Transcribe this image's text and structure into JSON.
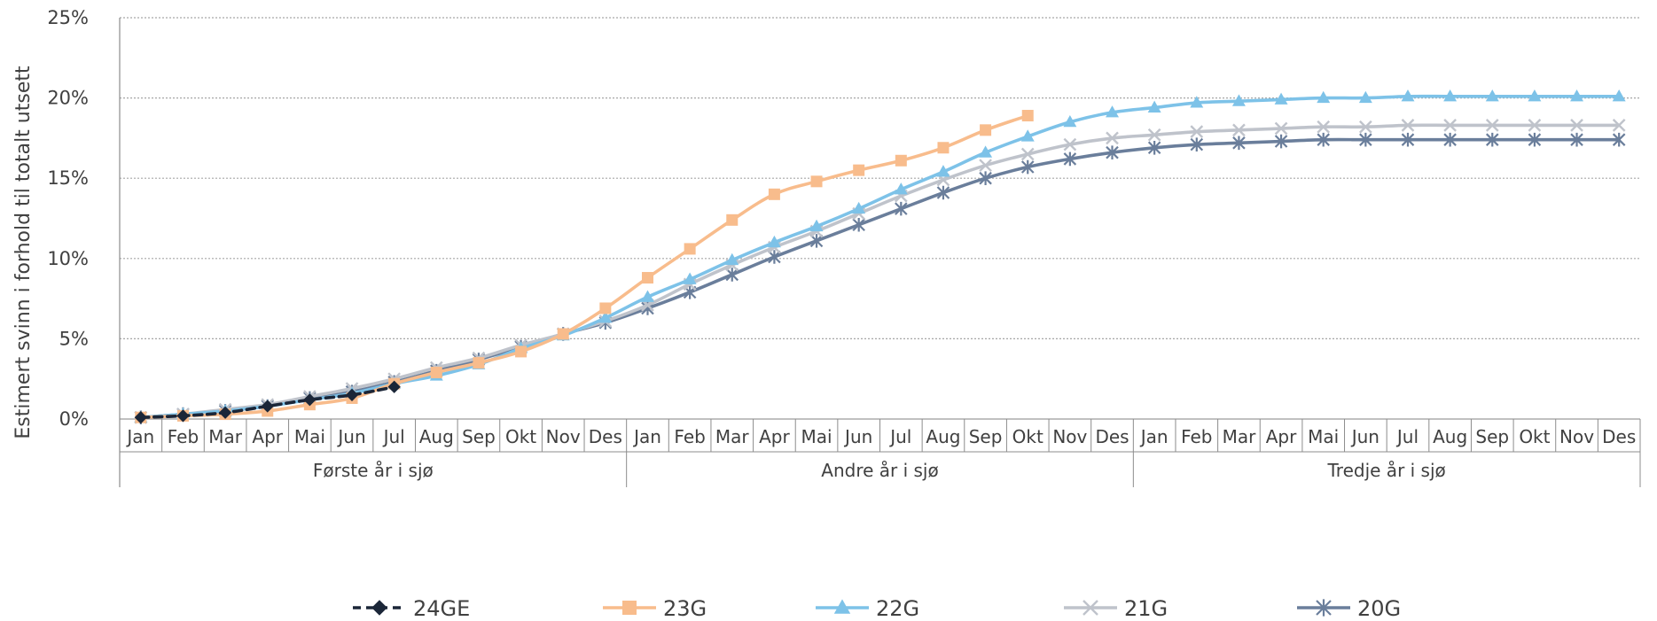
{
  "chart_data": {
    "type": "line",
    "title": "",
    "ylabel": "Estimert svinn i forhold til totalt utsett",
    "xlabel": "",
    "ylim": [
      0,
      25
    ],
    "yticks": [
      "0%",
      "5%",
      "10%",
      "15%",
      "20%",
      "25%"
    ],
    "grid": "horizontal dotted",
    "legend_position": "bottom",
    "categories": [
      "Jan",
      "Feb",
      "Mar",
      "Apr",
      "Mai",
      "Jun",
      "Jul",
      "Aug",
      "Sep",
      "Okt",
      "Nov",
      "Des",
      "Jan",
      "Feb",
      "Mar",
      "Apr",
      "Mai",
      "Jun",
      "Jul",
      "Aug",
      "Sep",
      "Okt",
      "Nov",
      "Des",
      "Jan",
      "Feb",
      "Mar",
      "Apr",
      "Mai",
      "Jun",
      "Jul",
      "Aug",
      "Sep",
      "Okt",
      "Nov",
      "Des"
    ],
    "groups": [
      {
        "label": "Første år i sjø",
        "start": 0,
        "end": 11
      },
      {
        "label": "Andre år i sjø",
        "start": 12,
        "end": 23
      },
      {
        "label": "Tredje år i sjø",
        "start": 24,
        "end": 35
      }
    ],
    "series": [
      {
        "name": "20G",
        "color": "#6a7e9b",
        "marker": "asterisk",
        "values": [
          0.1,
          0.3,
          0.5,
          0.8,
          1.3,
          1.7,
          2.3,
          3.0,
          3.7,
          4.5,
          5.3,
          6.0,
          6.9,
          7.9,
          9.0,
          10.1,
          11.1,
          12.1,
          13.1,
          14.1,
          15.0,
          15.7,
          16.2,
          16.6,
          16.9,
          17.1,
          17.2,
          17.3,
          17.4,
          17.4,
          17.4,
          17.4,
          17.4,
          17.4,
          17.4,
          17.4
        ]
      },
      {
        "name": "21G",
        "color": "#bfc3cb",
        "marker": "x",
        "values": [
          0.1,
          0.3,
          0.6,
          0.9,
          1.4,
          1.9,
          2.5,
          3.2,
          3.8,
          4.6,
          5.3,
          6.1,
          7.1,
          8.4,
          9.6,
          10.7,
          11.7,
          12.8,
          13.9,
          14.9,
          15.8,
          16.5,
          17.1,
          17.5,
          17.7,
          17.9,
          18.0,
          18.1,
          18.2,
          18.2,
          18.3,
          18.3,
          18.3,
          18.3,
          18.3,
          18.3
        ]
      },
      {
        "name": "22G",
        "color": "#7dc2e8",
        "marker": "triangle",
        "values": [
          0.1,
          0.3,
          0.5,
          0.8,
          1.2,
          1.6,
          2.2,
          2.7,
          3.4,
          4.4,
          5.2,
          6.3,
          7.6,
          8.7,
          9.9,
          11.0,
          12.0,
          13.1,
          14.3,
          15.4,
          16.6,
          17.6,
          18.5,
          19.1,
          19.4,
          19.7,
          19.8,
          19.9,
          20.0,
          20.0,
          20.1,
          20.1,
          20.1,
          20.1,
          20.1,
          20.1
        ]
      },
      {
        "name": "23G",
        "color": "#f8bc8c",
        "marker": "square",
        "values": [
          0.1,
          0.2,
          0.3,
          0.5,
          0.9,
          1.3,
          2.2,
          2.9,
          3.5,
          4.2,
          5.3,
          6.9,
          8.8,
          10.6,
          12.4,
          14.0,
          14.8,
          15.5,
          16.1,
          16.9,
          18.0,
          18.9,
          null,
          null,
          null,
          null,
          null,
          null,
          null,
          null,
          null,
          null,
          null,
          null,
          null,
          null
        ]
      },
      {
        "name": "24GE",
        "color": "#1b2638",
        "marker": "diamond",
        "dashed": true,
        "values": [
          0.1,
          0.2,
          0.4,
          0.8,
          1.2,
          1.5,
          2.0,
          null,
          null,
          null,
          null,
          null,
          null,
          null,
          null,
          null,
          null,
          null,
          null,
          null,
          null,
          null,
          null,
          null,
          null,
          null,
          null,
          null,
          null,
          null,
          null,
          null,
          null,
          null,
          null,
          null
        ]
      }
    ],
    "legend_order": [
      "24GE",
      "23G",
      "22G",
      "21G",
      "20G"
    ]
  }
}
